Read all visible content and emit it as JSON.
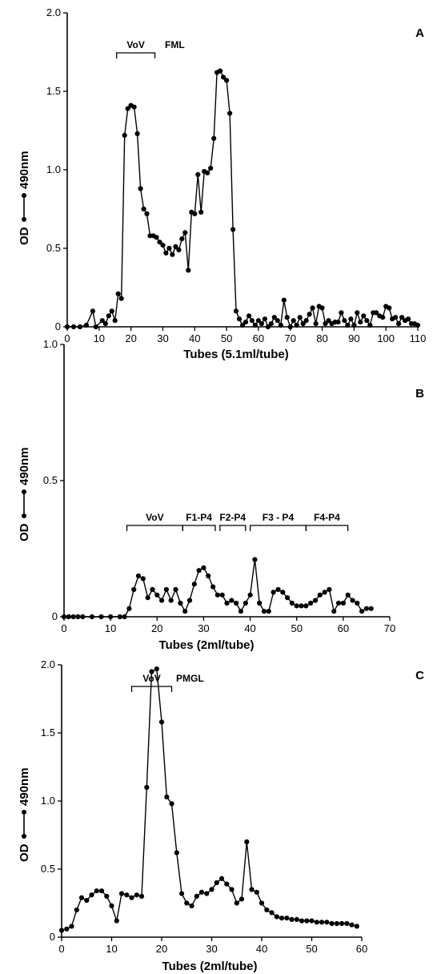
{
  "chart_data": [
    {
      "type": "line",
      "panel": "A",
      "xlabel": "Tubes (5.1ml/tube)",
      "ylabel": "OD",
      "ylabel_unit": "490nm",
      "xlim": [
        0,
        110
      ],
      "ylim": [
        0,
        2.0
      ],
      "xticks": [
        "0",
        "10",
        "20",
        "30",
        "40",
        "50",
        "60",
        "70",
        "80",
        "90",
        "100",
        "110"
      ],
      "yticks": [
        "0",
        "0.5",
        "1.0",
        "1.5",
        "2.0"
      ],
      "brackets": [
        {
          "label": "VoV",
          "x_start": 15.5,
          "x_end": 27.5
        },
        {
          "label": "FML",
          "x_start": null,
          "x_end": null
        }
      ],
      "series": [
        {
          "x": [
            0,
            2,
            4,
            6,
            8,
            9,
            11,
            12,
            13,
            14,
            15,
            16,
            17,
            18,
            19,
            20,
            21,
            22,
            23,
            24,
            25,
            26,
            27,
            28,
            29,
            30,
            31,
            32,
            33,
            34,
            35,
            36,
            37,
            38,
            39,
            40,
            41,
            42,
            43,
            44,
            45,
            46,
            47,
            48,
            49,
            50,
            51,
            52,
            53,
            54,
            55,
            56,
            57,
            58,
            59,
            60,
            61,
            62,
            63,
            64,
            65,
            66,
            67,
            68,
            69,
            70,
            71,
            72,
            73,
            74,
            75,
            76,
            77,
            78,
            79,
            80,
            81,
            82,
            83,
            84,
            85,
            86,
            87,
            88,
            89,
            90,
            91,
            92,
            93,
            94,
            95,
            96,
            97,
            98,
            99,
            100,
            101,
            102,
            103,
            104,
            105,
            106,
            107,
            108,
            109,
            110
          ],
          "y": [
            0,
            0,
            0,
            0.01,
            0.1,
            0,
            0.04,
            0.02,
            0.07,
            0.1,
            0.04,
            0.21,
            0.18,
            1.22,
            1.39,
            1.41,
            1.4,
            1.23,
            0.88,
            0.75,
            0.72,
            0.58,
            0.58,
            0.57,
            0.54,
            0.52,
            0.47,
            0.5,
            0.46,
            0.51,
            0.49,
            0.56,
            0.6,
            0.36,
            0.73,
            0.72,
            0.97,
            0.73,
            0.99,
            0.98,
            1.01,
            1.2,
            1.62,
            1.63,
            1.59,
            1.57,
            1.36,
            0.62,
            0.1,
            0.05,
            0.01,
            0.03,
            0.07,
            0.04,
            0.01,
            0.04,
            0.02,
            0.05,
            0,
            0.02,
            0.06,
            0.04,
            0.01,
            0.17,
            0.06,
            0,
            0.04,
            0.01,
            0.06,
            0.02,
            0.04,
            0.08,
            0.12,
            0.02,
            0.13,
            0.12,
            0.02,
            0.04,
            0.02,
            0.03,
            0.03,
            0.09,
            0.04,
            0.01,
            0.05,
            0.01,
            0.09,
            0.03,
            0.07,
            0.04,
            0.01,
            0.09,
            0.09,
            0.07,
            0.06,
            0.13,
            0.12,
            0.05,
            0.06,
            0.02,
            0.06,
            0.04,
            0.05,
            0.02,
            0.02,
            0.01
          ]
        }
      ]
    },
    {
      "type": "line",
      "panel": "B",
      "xlabel": "Tubes (2ml/tube)",
      "ylabel": "OD",
      "ylabel_unit": "490nm",
      "xlim": [
        0,
        70
      ],
      "ylim": [
        0,
        1.0
      ],
      "xticks": [
        "0",
        "10",
        "20",
        "30",
        "40",
        "50",
        "60",
        "70"
      ],
      "yticks": [
        "0",
        "0.5",
        "1.0"
      ],
      "brackets": [
        {
          "label": "VoV",
          "x_start": 13.5,
          "x_end": 25.5
        },
        {
          "label": "F1-P4",
          "x_start": 25.5,
          "x_end": 32.5
        },
        {
          "label": "F2-P4",
          "x_start": 33.5,
          "x_end": 39
        },
        {
          "label": "F3 - P4",
          "x_start": 40,
          "x_end": 52
        },
        {
          "label": "F4-P4",
          "x_start": 52,
          "x_end": 61
        }
      ],
      "series": [
        {
          "x": [
            0,
            1,
            2,
            3,
            4,
            6,
            8,
            10,
            12,
            13,
            14,
            15,
            16,
            17,
            18,
            19,
            20,
            21,
            22,
            23,
            24,
            25,
            26,
            27,
            28,
            29,
            30,
            31,
            32,
            33,
            34,
            35,
            36,
            37,
            38,
            39,
            40,
            41,
            42,
            43,
            44,
            45,
            46,
            47,
            48,
            49,
            50,
            51,
            52,
            53,
            54,
            55,
            56,
            57,
            58,
            59,
            60,
            61,
            62,
            63,
            64,
            65,
            66
          ],
          "y": [
            0,
            0,
            0,
            0,
            0,
            0,
            0,
            0,
            0,
            0,
            0.03,
            0.1,
            0.15,
            0.14,
            0.07,
            0.1,
            0.08,
            0.06,
            0.1,
            0.06,
            0.1,
            0.05,
            0.02,
            0.06,
            0.12,
            0.17,
            0.18,
            0.15,
            0.11,
            0.08,
            0.08,
            0.05,
            0.06,
            0.05,
            0.02,
            0.05,
            0.08,
            0.21,
            0.05,
            0.02,
            0.02,
            0.09,
            0.1,
            0.09,
            0.07,
            0.05,
            0.04,
            0.04,
            0.04,
            0.05,
            0.06,
            0.08,
            0.09,
            0.1,
            0.02,
            0.05,
            0.05,
            0.08,
            0.06,
            0.05,
            0.02,
            0.03,
            0.03
          ]
        }
      ]
    },
    {
      "type": "line",
      "panel": "C",
      "xlabel": "Tubes (2ml/tube)",
      "ylabel": "OD",
      "ylabel_unit": "490nm",
      "xlim": [
        0,
        60
      ],
      "ylim": [
        0,
        2.0
      ],
      "xticks": [
        "0",
        "10",
        "20",
        "30",
        "40",
        "50",
        "60"
      ],
      "yticks": [
        "0",
        "0.5",
        "1.0",
        "1.5",
        "2.0"
      ],
      "brackets": [
        {
          "label": "VoV",
          "x_start": 14,
          "x_end": 22
        },
        {
          "label": "PMGL",
          "x_start": null,
          "x_end": null
        }
      ],
      "series": [
        {
          "x": [
            0,
            1,
            2,
            3,
            4,
            5,
            6,
            7,
            8,
            9,
            10,
            11,
            12,
            13,
            14,
            15,
            16,
            17,
            18,
            19,
            20,
            21,
            22,
            23,
            24,
            25,
            26,
            27,
            28,
            29,
            30,
            31,
            32,
            33,
            34,
            35,
            36,
            37,
            38,
            39,
            40,
            41,
            42,
            43,
            44,
            45,
            46,
            47,
            48,
            49,
            50,
            51,
            52,
            53,
            54,
            55,
            56,
            57,
            58,
            59
          ],
          "y": [
            0.05,
            0.06,
            0.08,
            0.2,
            0.29,
            0.27,
            0.31,
            0.34,
            0.34,
            0.3,
            0.23,
            0.12,
            0.32,
            0.31,
            0.29,
            0.31,
            0.3,
            1.1,
            1.95,
            1.97,
            1.58,
            1.03,
            0.98,
            0.62,
            0.32,
            0.25,
            0.23,
            0.3,
            0.33,
            0.32,
            0.35,
            0.4,
            0.43,
            0.39,
            0.35,
            0.25,
            0.28,
            0.7,
            0.35,
            0.33,
            0.25,
            0.2,
            0.18,
            0.15,
            0.14,
            0.14,
            0.13,
            0.13,
            0.12,
            0.12,
            0.12,
            0.11,
            0.11,
            0.11,
            0.1,
            0.1,
            0.1,
            0.1,
            0.09,
            0.08
          ]
        }
      ]
    }
  ]
}
